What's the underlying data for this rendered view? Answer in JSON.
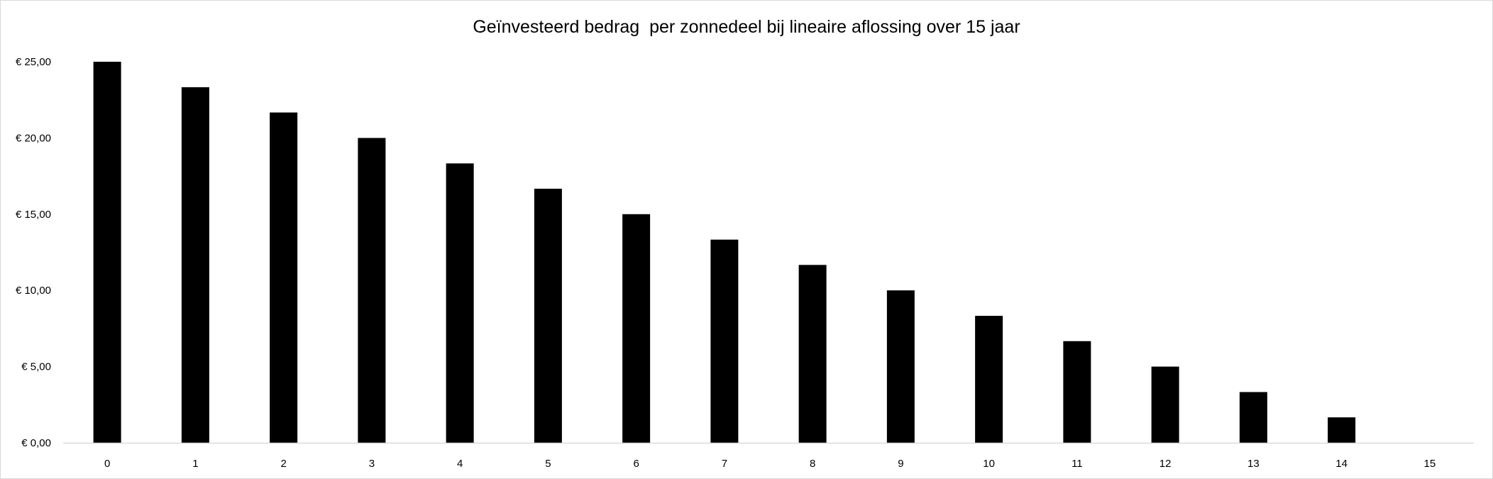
{
  "chart_data": {
    "type": "bar",
    "title": "Geïnvesteerd bedrag  per zonnedeel bij lineaire aflossing over 15 jaar",
    "xlabel": "",
    "ylabel": "",
    "categories": [
      "0",
      "1",
      "2",
      "3",
      "4",
      "5",
      "6",
      "7",
      "8",
      "9",
      "10",
      "11",
      "12",
      "13",
      "14",
      "15"
    ],
    "values": [
      25.0,
      23.33,
      21.67,
      20.0,
      18.33,
      16.67,
      15.0,
      13.33,
      11.67,
      10.0,
      8.33,
      6.67,
      5.0,
      3.33,
      1.67,
      0.0
    ],
    "ylim": [
      0,
      25
    ],
    "yticks": [
      0,
      5,
      10,
      15,
      20,
      25
    ],
    "ytick_labels": [
      "€ 0,00",
      "€ 5,00",
      "€ 10,00",
      "€ 15,00",
      "€ 20,00",
      "€ 25,00"
    ],
    "grid": false,
    "legend": "none",
    "bar_color": "#000000",
    "axis_color": "#d9d9d9"
  }
}
